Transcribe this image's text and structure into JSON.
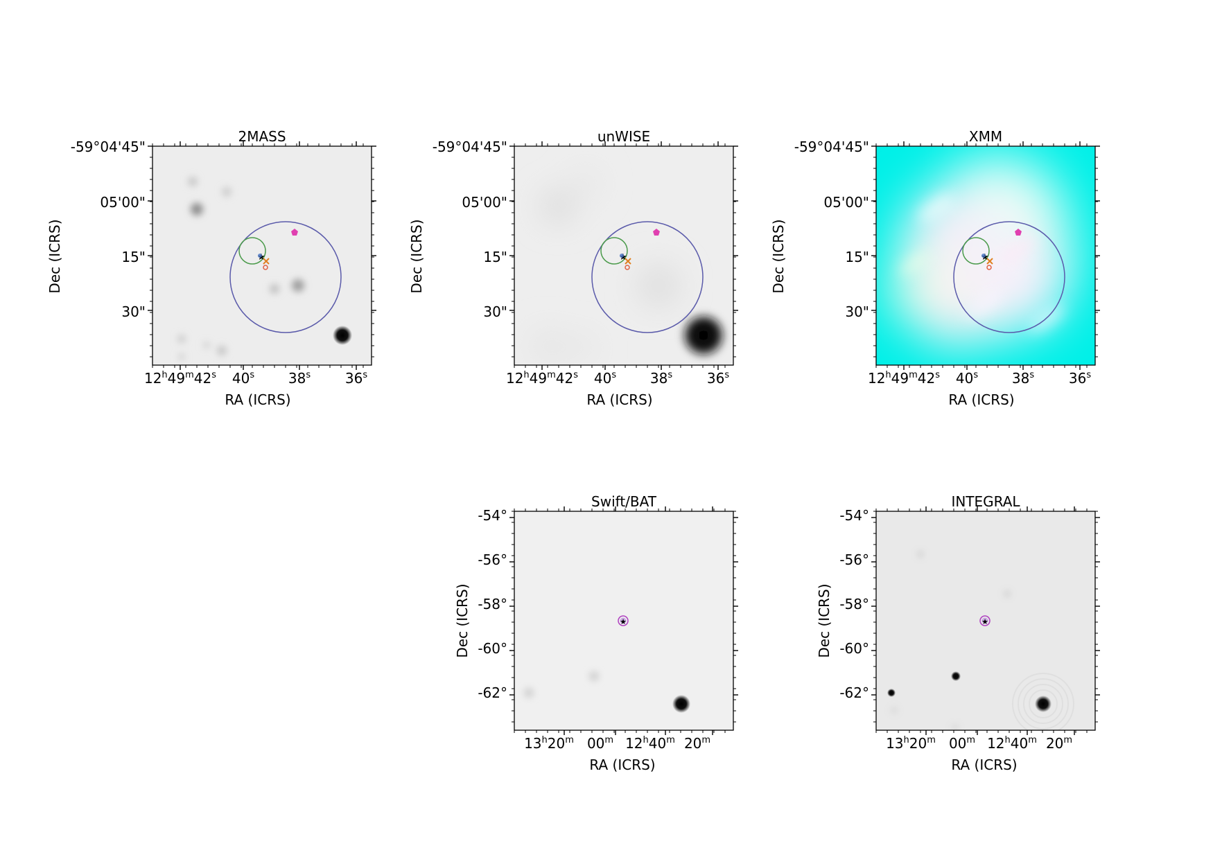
{
  "panels": [
    {
      "id": "2mass",
      "title": "2MASS",
      "kind": "small",
      "dec_ticks": [
        "-59°04'45\"",
        "05'00\"",
        "15\"",
        "30\""
      ],
      "ra_ticks": [
        {
          "h": "12",
          "hu": "h",
          "m": "49",
          "mu": "m",
          "s": "42",
          "su": "s"
        },
        {
          "s": "40",
          "su": "s"
        },
        {
          "s": "38",
          "su": "s"
        },
        {
          "s": "36",
          "su": "s"
        }
      ],
      "xlabel": "RA (ICRS)",
      "ylabel": "Dec (ICRS)",
      "background": "#ededed"
    },
    {
      "id": "unwise",
      "title": "unWISE",
      "kind": "small",
      "dec_ticks": [
        "-59°04'45\"",
        "05'00\"",
        "15\"",
        "30\""
      ],
      "ra_ticks": [
        {
          "h": "12",
          "hu": "h",
          "m": "49",
          "mu": "m",
          "s": "42",
          "su": "s"
        },
        {
          "s": "40",
          "su": "s"
        },
        {
          "s": "38",
          "su": "s"
        },
        {
          "s": "36",
          "su": "s"
        }
      ],
      "xlabel": "RA (ICRS)",
      "ylabel": "Dec (ICRS)",
      "background": "#eeeeee"
    },
    {
      "id": "xmm",
      "title": "XMM",
      "kind": "small",
      "dec_ticks": [
        "-59°04'45\"",
        "05'00\"",
        "15\"",
        "30\""
      ],
      "ra_ticks": [
        {
          "h": "12",
          "hu": "h",
          "m": "49",
          "mu": "m",
          "s": "42",
          "su": "s"
        },
        {
          "s": "40",
          "su": "s"
        },
        {
          "s": "38",
          "su": "s"
        },
        {
          "s": "36",
          "su": "s"
        }
      ],
      "xlabel": "RA (ICRS)",
      "ylabel": "Dec (ICRS)",
      "background": "#00f0e8"
    },
    {
      "id": "swift",
      "title": "Swift/BAT",
      "kind": "wide",
      "dec_ticks": [
        "-54°",
        "-56°",
        "-58°",
        "-60°",
        "-62°"
      ],
      "ra_ticks": [
        {
          "h": "13",
          "hu": "h",
          "m": "20",
          "mu": "m"
        },
        {
          "m": "00",
          "mu": "m"
        },
        {
          "h": "12",
          "hu": "h",
          "m": "40",
          "mu": "m"
        },
        {
          "m": "20",
          "mu": "m"
        }
      ],
      "xlabel": "RA (ICRS)",
      "ylabel": "Dec (ICRS)",
      "background": "#f0f0f0"
    },
    {
      "id": "integral",
      "title": "INTEGRAL",
      "kind": "wide",
      "dec_ticks": [
        "-54°",
        "-56°",
        "-58°",
        "-60°",
        "-62°"
      ],
      "ra_ticks": [
        {
          "h": "13",
          "hu": "h",
          "m": "20",
          "mu": "m"
        },
        {
          "m": "00",
          "mu": "m"
        },
        {
          "h": "12",
          "hu": "h",
          "m": "40",
          "mu": "m"
        },
        {
          "m": "20",
          "mu": "m"
        }
      ],
      "xlabel": "RA (ICRS)",
      "ylabel": "Dec (ICRS)",
      "background": "#e9e9e9"
    }
  ],
  "colors": {
    "large_circle": "#5a5aaa",
    "small_circle": "#4a9a4a",
    "star_marker": "#e6a020",
    "pentagon_marker": "#e040b0",
    "cross_marker": "#e08020",
    "ring_marker": "#e06040"
  }
}
